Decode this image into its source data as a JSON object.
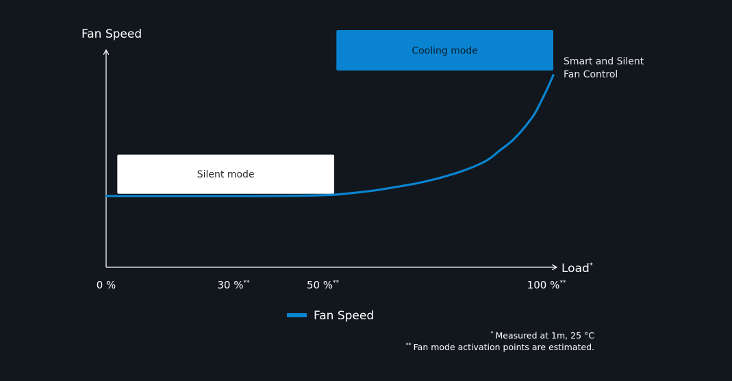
{
  "chart_data": {
    "type": "line",
    "ylabel": "Fan Speed",
    "xlabel": "Load",
    "xlabel_mark": "*",
    "x_ticks": [
      {
        "value": 0,
        "label": "0 %",
        "mark": ""
      },
      {
        "value": 30,
        "label": "30 %",
        "mark": "**"
      },
      {
        "value": 50,
        "label": "50 %",
        "mark": "**"
      },
      {
        "value": 100,
        "label": "100 %",
        "mark": "**"
      }
    ],
    "xlim": [
      0,
      100
    ],
    "ylim": [
      0,
      100
    ],
    "series": [
      {
        "name": "Fan Speed",
        "color": "#0a84d0",
        "x": [
          0,
          10,
          20,
          30,
          40,
          50,
          55,
          60,
          65,
          70,
          75,
          80,
          85,
          88,
          91,
          94,
          96,
          98,
          99,
          100
        ],
        "y": [
          30,
          30,
          30,
          30,
          30.1,
          30.5,
          31.3,
          32.4,
          33.9,
          35.6,
          37.9,
          40.8,
          44.9,
          49.2,
          53.7,
          60,
          65.3,
          72.7,
          76.7,
          81
        ]
      }
    ],
    "modes": [
      {
        "label": "Silent mode",
        "x_start": 2.5,
        "x_end": 51,
        "y_bottom": 31,
        "y_top": 47.5,
        "fill": "#ffffff",
        "text_color": "#2b2b2b"
      },
      {
        "label": "Cooling mode",
        "x_start": 51.5,
        "x_end": 100,
        "y_bottom": 83,
        "y_top": 100,
        "fill": "#0a84d0",
        "text_color": "#0b1a2a"
      }
    ],
    "annotation": [
      "Smart and Silent",
      "Fan Control"
    ],
    "legend": {
      "label": "Fan Speed",
      "placement": "bottom-center"
    },
    "grid": false
  },
  "footnotes": [
    {
      "mark": "*",
      "text": "Measured at 1m, 25 °C"
    },
    {
      "mark": "**",
      "text": "Fan mode activation points are estimated."
    }
  ],
  "colors": {
    "background": "#12171d",
    "axis": "#ffffff",
    "line": "#0a84d0"
  }
}
